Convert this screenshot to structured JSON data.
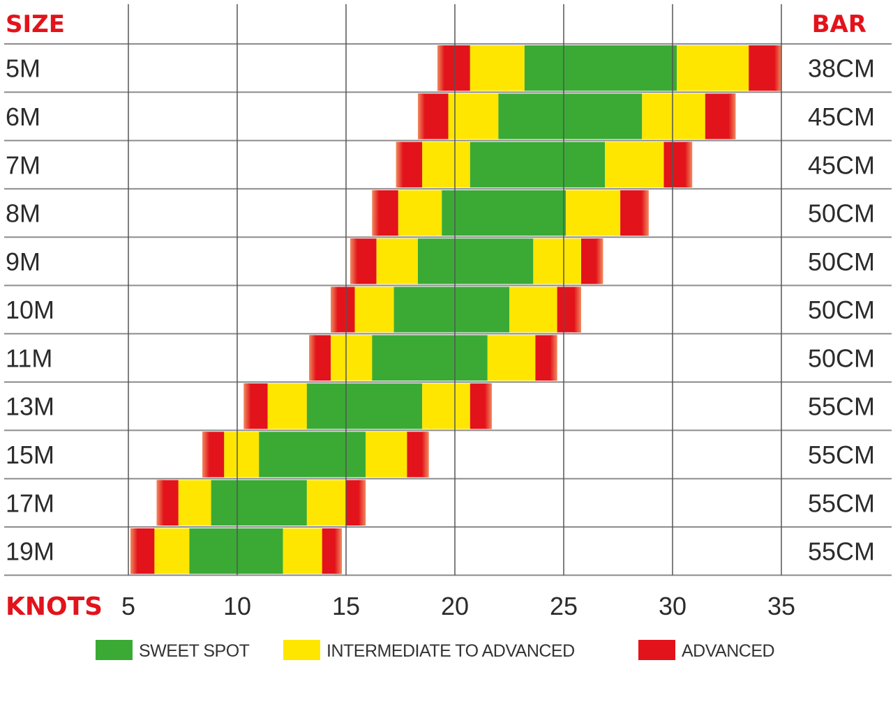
{
  "chart_data": {
    "type": "bar",
    "subtype": "floating-range",
    "size_header": "SIZE",
    "bar_header": "BAR",
    "x_axis_label": "KNOTS",
    "xlim": [
      5,
      35
    ],
    "x_ticks": [
      5,
      10,
      15,
      20,
      25,
      30,
      35
    ],
    "grid": true,
    "legend_position": "bottom",
    "legend": [
      {
        "key": "sweet",
        "label": "SWEET SPOT",
        "color": "#3aaa35"
      },
      {
        "key": "inter",
        "label": "INTERMEDIATE TO ADVANCED",
        "color": "#ffe600"
      },
      {
        "key": "adv",
        "label": "ADVANCED",
        "color": "#e3131b"
      }
    ],
    "rows": [
      {
        "size": "5M",
        "bar": "38CM",
        "adv_low": [
          19.2,
          20.7
        ],
        "inter_low": [
          20.7,
          23.2
        ],
        "sweet": [
          23.2,
          30.2
        ],
        "inter_high": [
          30.2,
          33.5
        ],
        "adv_high": [
          33.5,
          35
        ]
      },
      {
        "size": "6M",
        "bar": "45CM",
        "adv_low": [
          18.3,
          19.7
        ],
        "inter_low": [
          19.7,
          22.0
        ],
        "sweet": [
          22.0,
          28.6
        ],
        "inter_high": [
          28.6,
          31.5
        ],
        "adv_high": [
          31.5,
          32.9
        ]
      },
      {
        "size": "7M",
        "bar": "45CM",
        "adv_low": [
          17.3,
          18.5
        ],
        "inter_low": [
          18.5,
          20.7
        ],
        "sweet": [
          20.7,
          26.9
        ],
        "inter_high": [
          26.9,
          29.6
        ],
        "adv_high": [
          29.6,
          30.9
        ]
      },
      {
        "size": "8M",
        "bar": "50CM",
        "adv_low": [
          16.2,
          17.4
        ],
        "inter_low": [
          17.4,
          19.4
        ],
        "sweet": [
          19.4,
          25.1
        ],
        "inter_high": [
          25.1,
          27.6
        ],
        "adv_high": [
          27.6,
          28.9
        ]
      },
      {
        "size": "9M",
        "bar": "50CM",
        "adv_low": [
          15.2,
          16.4
        ],
        "inter_low": [
          16.4,
          18.3
        ],
        "sweet": [
          18.3,
          23.6
        ],
        "inter_high": [
          23.6,
          25.8
        ],
        "adv_high": [
          25.8,
          26.8
        ]
      },
      {
        "size": "10M",
        "bar": "50CM",
        "adv_low": [
          14.3,
          15.4
        ],
        "inter_low": [
          15.4,
          17.2
        ],
        "sweet": [
          17.2,
          22.5
        ],
        "inter_high": [
          22.5,
          24.7
        ],
        "adv_high": [
          24.7,
          25.8
        ]
      },
      {
        "size": "11M",
        "bar": "50CM",
        "adv_low": [
          13.3,
          14.3
        ],
        "inter_low": [
          14.3,
          16.2
        ],
        "sweet": [
          16.2,
          21.5
        ],
        "inter_high": [
          21.5,
          23.7
        ],
        "adv_high": [
          23.7,
          24.7
        ]
      },
      {
        "size": "13M",
        "bar": "55CM",
        "adv_low": [
          10.3,
          11.4
        ],
        "inter_low": [
          11.4,
          13.2
        ],
        "sweet": [
          13.2,
          18.5
        ],
        "inter_high": [
          18.5,
          20.7
        ],
        "adv_high": [
          20.7,
          21.7
        ]
      },
      {
        "size": "15M",
        "bar": "55CM",
        "adv_low": [
          8.4,
          9.4
        ],
        "inter_low": [
          9.4,
          11.0
        ],
        "sweet": [
          11.0,
          15.9
        ],
        "inter_high": [
          15.9,
          17.8
        ],
        "adv_high": [
          17.8,
          18.8
        ]
      },
      {
        "size": "17M",
        "bar": "55CM",
        "adv_low": [
          6.3,
          7.3
        ],
        "inter_low": [
          7.3,
          8.8
        ],
        "sweet": [
          8.8,
          13.2
        ],
        "inter_high": [
          13.2,
          15.0
        ],
        "adv_high": [
          15.0,
          15.9
        ]
      },
      {
        "size": "19M",
        "bar": "55CM",
        "adv_low": [
          5.1,
          6.2
        ],
        "inter_low": [
          6.2,
          7.8
        ],
        "sweet": [
          7.8,
          12.1
        ],
        "inter_high": [
          12.1,
          13.9
        ],
        "adv_high": [
          13.9,
          14.8
        ]
      }
    ]
  }
}
